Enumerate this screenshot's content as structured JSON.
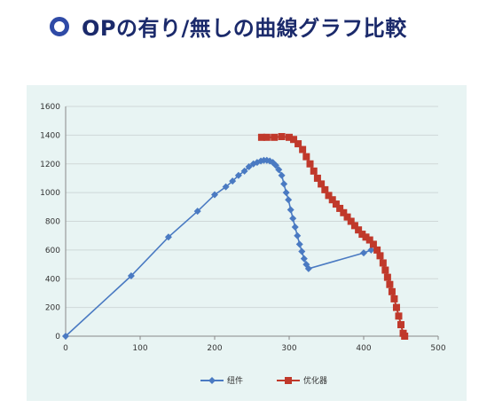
{
  "header": {
    "title": "OPの有り/無しの曲線グラフ比較",
    "bullet_color": "#2f4aa6",
    "title_color": "#1b2a6b"
  },
  "chart_data": {
    "type": "line",
    "title": "",
    "xlabel": "",
    "ylabel": "",
    "xlim": [
      0,
      500
    ],
    "ylim": [
      0,
      1600
    ],
    "xticks": [
      0,
      100,
      200,
      300,
      400,
      500
    ],
    "yticks": [
      0,
      200,
      400,
      600,
      800,
      1000,
      1200,
      1400,
      1600
    ],
    "grid": "horizontal",
    "legend_position": "bottom",
    "background": "#e8f4f3",
    "series": [
      {
        "name": "纽件",
        "color": "#4a7ac2",
        "marker": "diamond",
        "points": [
          [
            0,
            0
          ],
          [
            88,
            420
          ],
          [
            138,
            690
          ],
          [
            177,
            870
          ],
          [
            200,
            985
          ],
          [
            215,
            1040
          ],
          [
            224,
            1080
          ],
          [
            232,
            1120
          ],
          [
            240,
            1150
          ],
          [
            246,
            1180
          ],
          [
            252,
            1200
          ],
          [
            257,
            1210
          ],
          [
            262,
            1220
          ],
          [
            266,
            1225
          ],
          [
            270,
            1225
          ],
          [
            274,
            1220
          ],
          [
            278,
            1210
          ],
          [
            282,
            1190
          ],
          [
            286,
            1160
          ],
          [
            290,
            1120
          ],
          [
            293,
            1060
          ],
          [
            296,
            1000
          ],
          [
            299,
            950
          ],
          [
            302,
            880
          ],
          [
            305,
            820
          ],
          [
            308,
            760
          ],
          [
            311,
            700
          ],
          [
            314,
            640
          ],
          [
            317,
            590
          ],
          [
            320,
            540
          ],
          [
            323,
            500
          ],
          [
            326,
            470
          ],
          [
            400,
            580
          ],
          [
            410,
            600
          ]
        ]
      },
      {
        "name": "优化器",
        "color": "#c0392b",
        "marker": "square",
        "points": [
          [
            263,
            1385
          ],
          [
            270,
            1385
          ],
          [
            280,
            1385
          ],
          [
            290,
            1390
          ],
          [
            300,
            1385
          ],
          [
            306,
            1370
          ],
          [
            312,
            1340
          ],
          [
            318,
            1300
          ],
          [
            323,
            1250
          ],
          [
            328,
            1200
          ],
          [
            333,
            1150
          ],
          [
            338,
            1100
          ],
          [
            343,
            1060
          ],
          [
            348,
            1020
          ],
          [
            353,
            980
          ],
          [
            358,
            950
          ],
          [
            363,
            920
          ],
          [
            368,
            890
          ],
          [
            373,
            860
          ],
          [
            378,
            830
          ],
          [
            383,
            800
          ],
          [
            388,
            770
          ],
          [
            393,
            740
          ],
          [
            398,
            710
          ],
          [
            403,
            690
          ],
          [
            408,
            670
          ],
          [
            413,
            640
          ],
          [
            418,
            600
          ],
          [
            422,
            560
          ],
          [
            426,
            510
          ],
          [
            429,
            460
          ],
          [
            432,
            410
          ],
          [
            435,
            360
          ],
          [
            438,
            310
          ],
          [
            441,
            260
          ],
          [
            444,
            200
          ],
          [
            447,
            140
          ],
          [
            450,
            80
          ],
          [
            453,
            20
          ],
          [
            455,
            0
          ]
        ]
      }
    ]
  }
}
